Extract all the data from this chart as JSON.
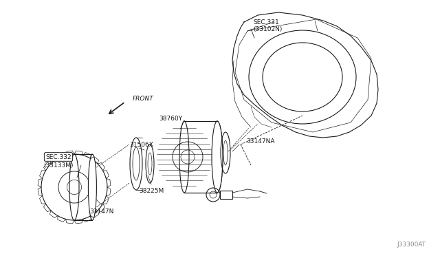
{
  "bg_color": "#ffffff",
  "line_color": "#1a1a1a",
  "fig_width": 6.4,
  "fig_height": 3.72,
  "dpi": 100,
  "labels": {
    "sec331": "SEC.331",
    "sec331sub": "(33102N)",
    "ref38760Y": "38760Y",
    "ref31506X": "31506X",
    "ref33147NA": "33147NA",
    "ref38225M": "38225M",
    "ref33147N": "33147N",
    "sec332": "SEC.332",
    "sec332sub": "(33133M)",
    "front": "FRONT",
    "diagram_id": "J33300AT"
  }
}
